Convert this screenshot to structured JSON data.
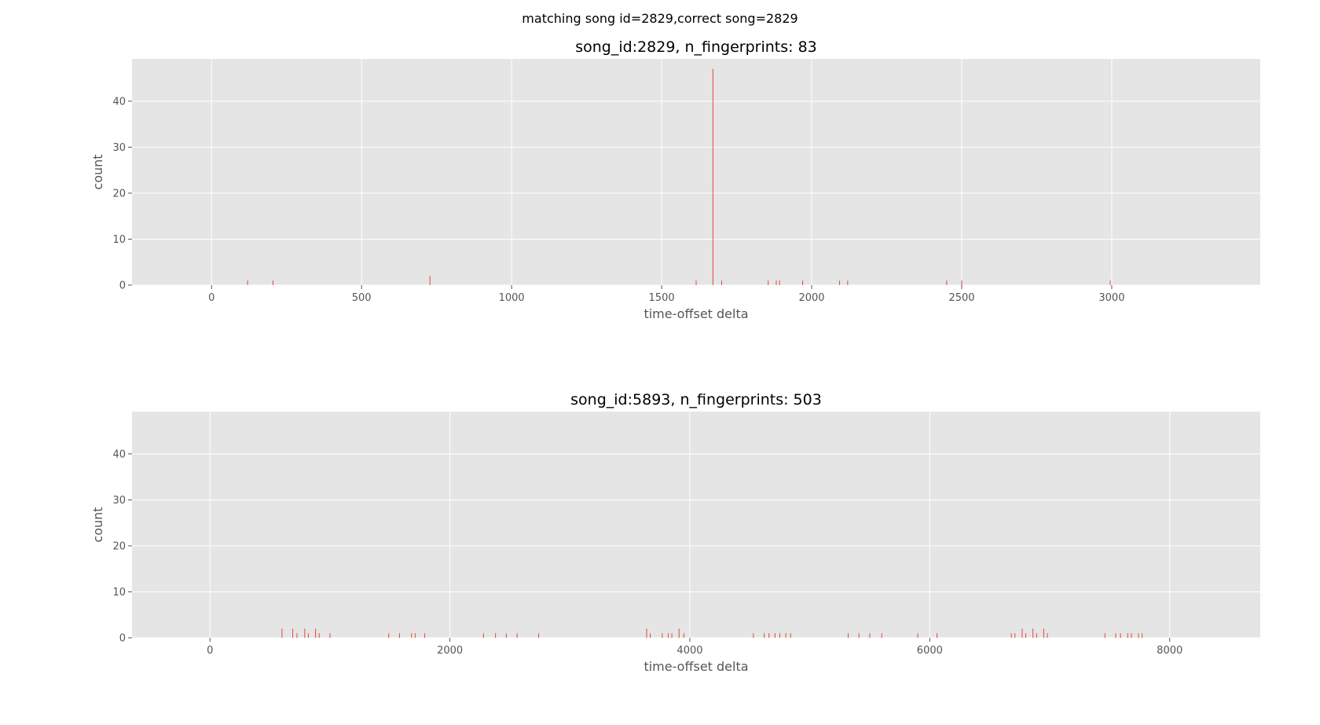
{
  "figure": {
    "suptitle": "matching song id=2829,correct song=2829"
  },
  "colors": {
    "plot_bg": "#e5e5e5",
    "grid": "#ffffff",
    "bar": "#e24a33",
    "tick_text": "#555555",
    "title_text": "#000000"
  },
  "chart_data": [
    {
      "type": "bar",
      "title": "song_id:2829, n_fingerprints: 83",
      "xlabel": "time-offset delta",
      "ylabel": "count",
      "xlim": [
        -265,
        3495
      ],
      "ylim": [
        0,
        49.2
      ],
      "xticks": [
        0,
        500,
        1000,
        1500,
        2000,
        2500,
        3000
      ],
      "yticks": [
        0,
        10,
        20,
        30,
        40
      ],
      "grid": true,
      "bars": [
        {
          "x": 120,
          "y": 1
        },
        {
          "x": 205,
          "y": 1
        },
        {
          "x": 728,
          "y": 2
        },
        {
          "x": 1615,
          "y": 1
        },
        {
          "x": 1671,
          "y": 47
        },
        {
          "x": 1700,
          "y": 1
        },
        {
          "x": 1855,
          "y": 1
        },
        {
          "x": 1882,
          "y": 1
        },
        {
          "x": 1893,
          "y": 1
        },
        {
          "x": 1970,
          "y": 1
        },
        {
          "x": 2093,
          "y": 1
        },
        {
          "x": 2120,
          "y": 1
        },
        {
          "x": 2450,
          "y": 1
        },
        {
          "x": 2500,
          "y": 1
        },
        {
          "x": 2995,
          "y": 1
        }
      ]
    },
    {
      "type": "bar",
      "title": "song_id:5893, n_fingerprints: 503",
      "xlabel": "time-offset delta",
      "ylabel": "count",
      "xlim": [
        -650,
        8755
      ],
      "ylim": [
        0,
        49.2
      ],
      "xticks": [
        0,
        2000,
        4000,
        6000,
        8000
      ],
      "yticks": [
        0,
        10,
        20,
        30,
        40
      ],
      "grid": true,
      "bars": [
        {
          "x": 600,
          "y": 2
        },
        {
          "x": 690,
          "y": 2
        },
        {
          "x": 725,
          "y": 1
        },
        {
          "x": 790,
          "y": 2
        },
        {
          "x": 820,
          "y": 1
        },
        {
          "x": 880,
          "y": 2
        },
        {
          "x": 910,
          "y": 1
        },
        {
          "x": 1000,
          "y": 1
        },
        {
          "x": 1490,
          "y": 1
        },
        {
          "x": 1580,
          "y": 1
        },
        {
          "x": 1680,
          "y": 1
        },
        {
          "x": 1710,
          "y": 1
        },
        {
          "x": 1790,
          "y": 1
        },
        {
          "x": 2280,
          "y": 1
        },
        {
          "x": 2380,
          "y": 1
        },
        {
          "x": 2470,
          "y": 1
        },
        {
          "x": 2560,
          "y": 1
        },
        {
          "x": 2740,
          "y": 1
        },
        {
          "x": 3640,
          "y": 2
        },
        {
          "x": 3670,
          "y": 1
        },
        {
          "x": 3770,
          "y": 1
        },
        {
          "x": 3820,
          "y": 1
        },
        {
          "x": 3850,
          "y": 1
        },
        {
          "x": 3910,
          "y": 2
        },
        {
          "x": 3950,
          "y": 1
        },
        {
          "x": 4530,
          "y": 1
        },
        {
          "x": 4620,
          "y": 1
        },
        {
          "x": 4660,
          "y": 1
        },
        {
          "x": 4710,
          "y": 1
        },
        {
          "x": 4750,
          "y": 1
        },
        {
          "x": 4800,
          "y": 1
        },
        {
          "x": 4840,
          "y": 1
        },
        {
          "x": 5320,
          "y": 1
        },
        {
          "x": 5410,
          "y": 1
        },
        {
          "x": 5500,
          "y": 1
        },
        {
          "x": 5600,
          "y": 1
        },
        {
          "x": 5900,
          "y": 1
        },
        {
          "x": 6060,
          "y": 1
        },
        {
          "x": 6680,
          "y": 1
        },
        {
          "x": 6710,
          "y": 1
        },
        {
          "x": 6770,
          "y": 2
        },
        {
          "x": 6800,
          "y": 1
        },
        {
          "x": 6860,
          "y": 2
        },
        {
          "x": 6890,
          "y": 1
        },
        {
          "x": 6950,
          "y": 2
        },
        {
          "x": 6980,
          "y": 1
        },
        {
          "x": 7460,
          "y": 1
        },
        {
          "x": 7550,
          "y": 1
        },
        {
          "x": 7590,
          "y": 1
        },
        {
          "x": 7650,
          "y": 1
        },
        {
          "x": 7680,
          "y": 1
        },
        {
          "x": 7740,
          "y": 1
        },
        {
          "x": 7770,
          "y": 1
        }
      ]
    }
  ]
}
